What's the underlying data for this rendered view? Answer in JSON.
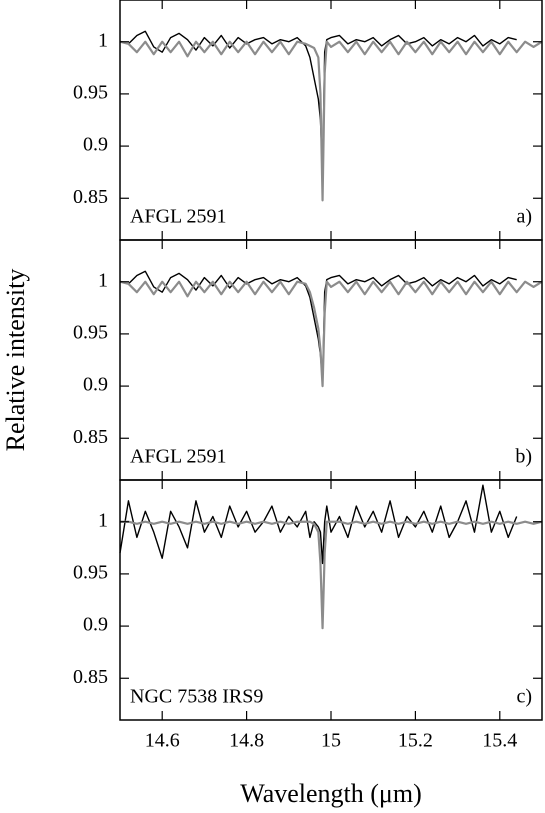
{
  "chart_data": [
    {
      "type": "line",
      "annotations": [
        "AFGL 2591",
        "a)"
      ],
      "x": [
        14.5,
        14.52,
        14.54,
        14.56,
        14.58,
        14.6,
        14.62,
        14.64,
        14.66,
        14.68,
        14.7,
        14.72,
        14.74,
        14.76,
        14.78,
        14.8,
        14.82,
        14.84,
        14.86,
        14.88,
        14.9,
        14.92,
        14.94,
        14.95,
        14.96,
        14.97,
        14.975,
        14.98,
        14.985,
        14.99,
        15,
        15.02,
        15.04,
        15.06,
        15.08,
        15.1,
        15.12,
        15.14,
        15.16,
        15.18,
        15.2,
        15.22,
        15.24,
        15.26,
        15.28,
        15.3,
        15.32,
        15.34,
        15.36,
        15.38,
        15.4,
        15.42,
        15.44,
        15.46,
        15.48,
        15.5
      ],
      "series": [
        {
          "color": "#000000",
          "values": [
            1.0,
            0.998,
            1.006,
            1.01,
            0.995,
            0.99,
            1.004,
            1.008,
            1.002,
            0.992,
            1.004,
            0.996,
            1.006,
            0.994,
            1.004,
            0.998,
            1.002,
            1.004,
            0.998,
            1.002,
            1.0,
            1.004,
            0.996,
            0.985,
            0.965,
            0.945,
            0.925,
            0.875,
            0.99,
            1.002,
            1.004,
            1.006,
            0.998,
            1.002,
            1.0,
            1.004,
            0.996,
            1.002,
            1.006,
            0.998,
            1.0,
            1.004,
            0.996,
            1.002,
            0.998,
            1.004,
            1.0,
            1.006,
            0.996,
            1.002,
            0.998,
            1.004,
            1.002,
            null,
            null,
            null
          ]
        },
        {
          "color": "#8c8c8c",
          "values": [
            1.0,
            0.998,
            0.99,
            1.0,
            0.988,
            1.0,
            0.99,
            1.0,
            0.986,
            1.0,
            0.99,
            1.0,
            0.988,
            1.0,
            0.99,
            1.0,
            0.988,
            1.0,
            0.99,
            1.0,
            0.988,
            1.0,
            0.998,
            0.996,
            0.994,
            0.985,
            0.95,
            0.848,
            0.97,
            1.0,
            0.995,
            1.0,
            0.99,
            1.0,
            0.988,
            1.0,
            0.99,
            1.0,
            0.988,
            1.0,
            0.99,
            1.0,
            0.988,
            1.0,
            0.99,
            1.0,
            0.988,
            1.0,
            0.99,
            1.0,
            0.988,
            1.0,
            0.99,
            1.0,
            0.995,
            1.0
          ]
        }
      ],
      "xlim": [
        14.5,
        15.5
      ],
      "xticks": [
        14.6,
        14.8,
        15,
        15.2,
        15.4
      ],
      "ylim": [
        0.81,
        1.04
      ],
      "yticks": [
        0.85,
        0.9,
        0.95,
        1
      ]
    },
    {
      "type": "line",
      "annotations": [
        "AFGL 2591",
        "b)"
      ],
      "ylabel": "Relative intensity",
      "x": [
        14.5,
        14.52,
        14.54,
        14.56,
        14.58,
        14.6,
        14.62,
        14.64,
        14.66,
        14.68,
        14.7,
        14.72,
        14.74,
        14.76,
        14.78,
        14.8,
        14.82,
        14.84,
        14.86,
        14.88,
        14.9,
        14.92,
        14.94,
        14.95,
        14.96,
        14.97,
        14.975,
        14.98,
        14.985,
        14.99,
        15,
        15.02,
        15.04,
        15.06,
        15.08,
        15.1,
        15.12,
        15.14,
        15.16,
        15.18,
        15.2,
        15.22,
        15.24,
        15.26,
        15.28,
        15.3,
        15.32,
        15.34,
        15.36,
        15.38,
        15.4,
        15.42,
        15.44,
        15.46,
        15.48,
        15.5
      ],
      "series": [
        {
          "color": "#000000",
          "values": [
            1.0,
            0.998,
            1.006,
            1.01,
            0.995,
            0.99,
            1.004,
            1.008,
            1.002,
            0.992,
            1.004,
            0.996,
            1.006,
            0.994,
            1.004,
            0.998,
            1.002,
            1.004,
            0.998,
            1.002,
            1.0,
            1.004,
            0.996,
            0.985,
            0.965,
            0.945,
            0.93,
            0.905,
            0.99,
            1.002,
            1.004,
            1.006,
            0.998,
            1.002,
            1.0,
            1.004,
            0.996,
            1.002,
            1.006,
            0.998,
            1.0,
            1.004,
            0.996,
            1.002,
            0.998,
            1.004,
            1.0,
            1.006,
            0.996,
            1.002,
            0.998,
            1.004,
            1.002,
            null,
            null,
            null
          ]
        },
        {
          "color": "#8c8c8c",
          "values": [
            1.0,
            0.998,
            0.99,
            1.0,
            0.988,
            1.0,
            0.99,
            1.0,
            0.986,
            1.0,
            0.99,
            1.0,
            0.988,
            1.0,
            0.99,
            1.0,
            0.988,
            1.0,
            0.99,
            1.0,
            0.988,
            1.0,
            0.998,
            0.99,
            0.975,
            0.955,
            0.935,
            0.9,
            0.97,
            1.0,
            0.995,
            1.0,
            0.99,
            1.0,
            0.988,
            1.0,
            0.99,
            1.0,
            0.988,
            1.0,
            0.99,
            1.0,
            0.988,
            1.0,
            0.99,
            1.0,
            0.988,
            1.0,
            0.99,
            1.0,
            0.988,
            1.0,
            0.99,
            1.0,
            0.995,
            1.0
          ]
        }
      ],
      "xlim": [
        14.5,
        15.5
      ],
      "xticks": [
        14.6,
        14.8,
        15,
        15.2,
        15.4
      ],
      "ylim": [
        0.81,
        1.04
      ],
      "yticks": [
        0.85,
        0.9,
        0.95,
        1
      ]
    },
    {
      "type": "line",
      "annotations": [
        "NGC 7538 IRS9",
        "c)"
      ],
      "xlabel": "Wavelength (μm)",
      "x": [
        14.5,
        14.52,
        14.54,
        14.56,
        14.58,
        14.6,
        14.62,
        14.64,
        14.66,
        14.68,
        14.7,
        14.72,
        14.74,
        14.76,
        14.78,
        14.8,
        14.82,
        14.84,
        14.86,
        14.88,
        14.9,
        14.92,
        14.94,
        14.95,
        14.96,
        14.97,
        14.975,
        14.98,
        14.985,
        14.99,
        15,
        15.02,
        15.04,
        15.06,
        15.08,
        15.1,
        15.12,
        15.14,
        15.16,
        15.18,
        15.2,
        15.22,
        15.24,
        15.26,
        15.28,
        15.3,
        15.32,
        15.34,
        15.36,
        15.38,
        15.4,
        15.42,
        15.44,
        15.46,
        15.48,
        15.5
      ],
      "series": [
        {
          "color": "#000000",
          "values": [
            0.97,
            1.02,
            0.985,
            1.01,
            0.99,
            0.965,
            1.01,
            0.995,
            0.975,
            1.02,
            0.99,
            1.005,
            0.985,
            1.015,
            0.995,
            1.01,
            0.99,
            1.0,
            1.015,
            0.99,
            1.005,
            0.995,
            1.01,
            0.985,
            1.0,
            0.995,
            0.99,
            0.96,
            1.0,
            1.015,
            0.99,
            1.005,
            0.985,
            1.015,
            0.995,
            1.01,
            0.99,
            1.02,
            0.985,
            1.005,
            0.995,
            1.01,
            0.99,
            1.015,
            0.985,
            1.0,
            1.02,
            0.99,
            1.035,
            0.99,
            1.01,
            0.985,
            1.005,
            null,
            null,
            null
          ]
        },
        {
          "color": "#8c8c8c",
          "values": [
            1.0,
            1.0,
            0.998,
            1.0,
            0.998,
            1.0,
            0.998,
            1.0,
            0.998,
            1.0,
            0.998,
            1.0,
            0.998,
            1.0,
            0.998,
            1.0,
            0.998,
            1.0,
            0.998,
            1.0,
            0.998,
            1.0,
            1.0,
            1.0,
            0.998,
            0.99,
            0.96,
            0.898,
            0.97,
            1.0,
            1.0,
            1.0,
            0.998,
            1.0,
            0.998,
            1.0,
            0.998,
            1.0,
            0.998,
            1.0,
            0.998,
            1.0,
            0.998,
            1.0,
            0.998,
            1.0,
            0.998,
            1.0,
            0.998,
            1.0,
            0.998,
            1.0,
            0.998,
            1.0,
            0.998,
            1.0
          ]
        }
      ],
      "xlim": [
        14.5,
        15.5
      ],
      "xticks": [
        14.6,
        14.8,
        15,
        15.2,
        15.4
      ],
      "ylim": [
        0.81,
        1.04
      ],
      "yticks": [
        0.85,
        0.9,
        0.95,
        1
      ]
    }
  ]
}
